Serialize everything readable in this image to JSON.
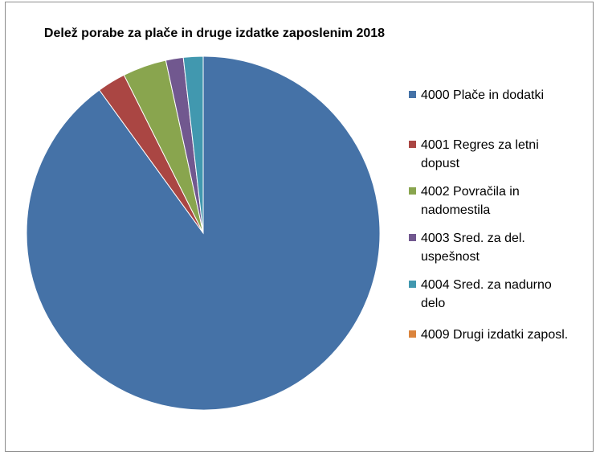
{
  "chart_data": {
    "type": "pie",
    "title": "Delež porabe za plače in druge izdatke zaposlenim 2018",
    "categories": [
      "4000 Plače in dodatki",
      "4001 Regres za letni dopust",
      "4002 Povračila in nadomestila",
      "4003 Sred. za del. uspešnost",
      "4004 Sred. za nadurno delo",
      "4009 Drugi izdatki zaposl."
    ],
    "legend_lines": [
      [
        "4000 Plače in dodatki"
      ],
      [
        "4001 Regres za letni",
        "dopust"
      ],
      [
        "4002 Povračila in",
        "nadomestila"
      ],
      [
        "4003 Sred. za del.",
        "uspešnost"
      ],
      [
        "4004 Sred. za nadurno",
        "delo"
      ],
      [
        "4009 Drugi izdatki zaposl."
      ]
    ],
    "values": [
      90.0,
      2.6,
      4.0,
      1.6,
      1.8,
      0.0
    ],
    "colors": [
      "#4572a7",
      "#aa4643",
      "#89a54e",
      "#71588f",
      "#4198af",
      "#db843d"
    ],
    "legend_position": "right"
  }
}
